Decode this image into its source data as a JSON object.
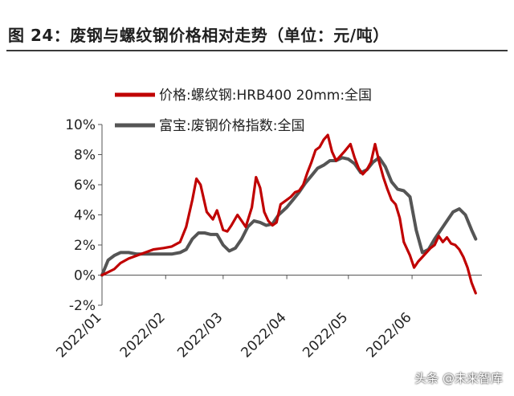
{
  "figure": {
    "title": "图 24：废钢与螺纹钢价格相对走势（单位：元/吨）",
    "watermark": "头条 @未来智库"
  },
  "chart_data": {
    "type": "line",
    "xlabel": "",
    "ylabel": "",
    "ylim": [
      -0.02,
      0.1
    ],
    "yticks": [
      -0.02,
      0,
      0.02,
      0.04,
      0.06,
      0.08,
      0.1
    ],
    "ytick_labels": [
      "-2%",
      "0%",
      "2%",
      "4%",
      "6%",
      "8%",
      "10%"
    ],
    "xlim": [
      "2022-01-01",
      "2022-07-05"
    ],
    "xticks": [
      "2022-01-01",
      "2022-02-01",
      "2022-03-01",
      "2022-04-01",
      "2022-05-01",
      "2022-06-01"
    ],
    "xtick_labels": [
      "2022/01",
      "2022/02",
      "2022/03",
      "2022/04",
      "2022/05",
      "2022/06"
    ],
    "grid": false,
    "legend_position": "top-left",
    "series": [
      {
        "name": "价格:螺纹钢:HRB400 20mm:全国",
        "color": "#c00000",
        "x": [
          "2022-01-01",
          "2022-01-04",
          "2022-01-07",
          "2022-01-10",
          "2022-01-14",
          "2022-01-18",
          "2022-01-22",
          "2022-01-26",
          "2022-01-31",
          "2022-02-04",
          "2022-02-08",
          "2022-02-11",
          "2022-02-14",
          "2022-02-16",
          "2022-02-18",
          "2022-02-21",
          "2022-02-24",
          "2022-02-26",
          "2022-03-01",
          "2022-03-03",
          "2022-03-05",
          "2022-03-08",
          "2022-03-10",
          "2022-03-12",
          "2022-03-15",
          "2022-03-17",
          "2022-03-19",
          "2022-03-21",
          "2022-03-23",
          "2022-03-25",
          "2022-03-27",
          "2022-03-29",
          "2022-04-01",
          "2022-04-03",
          "2022-04-05",
          "2022-04-07",
          "2022-04-09",
          "2022-04-11",
          "2022-04-13",
          "2022-04-15",
          "2022-04-17",
          "2022-04-19",
          "2022-04-21",
          "2022-04-23",
          "2022-04-25",
          "2022-04-27",
          "2022-04-29",
          "2022-05-02",
          "2022-05-04",
          "2022-05-06",
          "2022-05-08",
          "2022-05-10",
          "2022-05-12",
          "2022-05-14",
          "2022-05-16",
          "2022-05-18",
          "2022-05-20",
          "2022-05-22",
          "2022-05-24",
          "2022-05-26",
          "2022-05-28",
          "2022-05-31",
          "2022-06-02",
          "2022-06-04",
          "2022-06-06",
          "2022-06-08",
          "2022-06-10",
          "2022-06-12",
          "2022-06-14",
          "2022-06-16",
          "2022-06-18",
          "2022-06-20",
          "2022-06-22",
          "2022-06-24",
          "2022-06-26",
          "2022-06-28",
          "2022-06-30",
          "2022-07-02"
        ],
        "y": [
          0,
          0.002,
          0.004,
          0.008,
          0.011,
          0.013,
          0.015,
          0.017,
          0.018,
          0.019,
          0.022,
          0.032,
          0.05,
          0.064,
          0.06,
          0.042,
          0.037,
          0.043,
          0.03,
          0.029,
          0.033,
          0.04,
          0.036,
          0.032,
          0.045,
          0.065,
          0.058,
          0.042,
          0.036,
          0.033,
          0.035,
          0.047,
          0.05,
          0.052,
          0.055,
          0.056,
          0.06,
          0.068,
          0.075,
          0.083,
          0.085,
          0.09,
          0.093,
          0.082,
          0.076,
          0.079,
          0.082,
          0.087,
          0.078,
          0.071,
          0.067,
          0.07,
          0.075,
          0.087,
          0.075,
          0.065,
          0.057,
          0.05,
          0.047,
          0.038,
          0.022,
          0.013,
          0.005,
          0.009,
          0.012,
          0.015,
          0.018,
          0.02,
          0.026,
          0.022,
          0.025,
          0.021,
          0.02,
          0.017,
          0.012,
          0.005,
          -0.005,
          -0.012
        ]
      },
      {
        "name": "富宝:废钢价格指数:全国",
        "color": "#555555",
        "x": [
          "2022-01-01",
          "2022-01-04",
          "2022-01-07",
          "2022-01-10",
          "2022-01-14",
          "2022-01-18",
          "2022-01-22",
          "2022-01-26",
          "2022-01-31",
          "2022-02-04",
          "2022-02-08",
          "2022-02-11",
          "2022-02-14",
          "2022-02-17",
          "2022-02-20",
          "2022-02-23",
          "2022-02-26",
          "2022-03-01",
          "2022-03-04",
          "2022-03-07",
          "2022-03-10",
          "2022-03-13",
          "2022-03-16",
          "2022-03-19",
          "2022-03-22",
          "2022-03-25",
          "2022-03-28",
          "2022-04-01",
          "2022-04-04",
          "2022-04-07",
          "2022-04-10",
          "2022-04-13",
          "2022-04-16",
          "2022-04-19",
          "2022-04-22",
          "2022-04-25",
          "2022-04-28",
          "2022-05-01",
          "2022-05-04",
          "2022-05-07",
          "2022-05-10",
          "2022-05-13",
          "2022-05-16",
          "2022-05-19",
          "2022-05-22",
          "2022-05-25",
          "2022-05-28",
          "2022-05-31",
          "2022-06-03",
          "2022-06-06",
          "2022-06-09",
          "2022-06-12",
          "2022-06-15",
          "2022-06-18",
          "2022-06-21",
          "2022-06-24",
          "2022-06-27",
          "2022-06-30",
          "2022-07-02"
        ],
        "y": [
          0,
          0.01,
          0.013,
          0.015,
          0.015,
          0.014,
          0.014,
          0.014,
          0.014,
          0.014,
          0.015,
          0.017,
          0.024,
          0.028,
          0.028,
          0.027,
          0.027,
          0.02,
          0.016,
          0.018,
          0.024,
          0.032,
          0.036,
          0.035,
          0.033,
          0.034,
          0.04,
          0.045,
          0.05,
          0.055,
          0.061,
          0.066,
          0.071,
          0.073,
          0.076,
          0.076,
          0.078,
          0.077,
          0.074,
          0.068,
          0.07,
          0.075,
          0.078,
          0.072,
          0.062,
          0.057,
          0.056,
          0.052,
          0.03,
          0.015,
          0.017,
          0.024,
          0.03,
          0.036,
          0.042,
          0.044,
          0.04,
          0.03,
          0.024
        ]
      }
    ]
  }
}
